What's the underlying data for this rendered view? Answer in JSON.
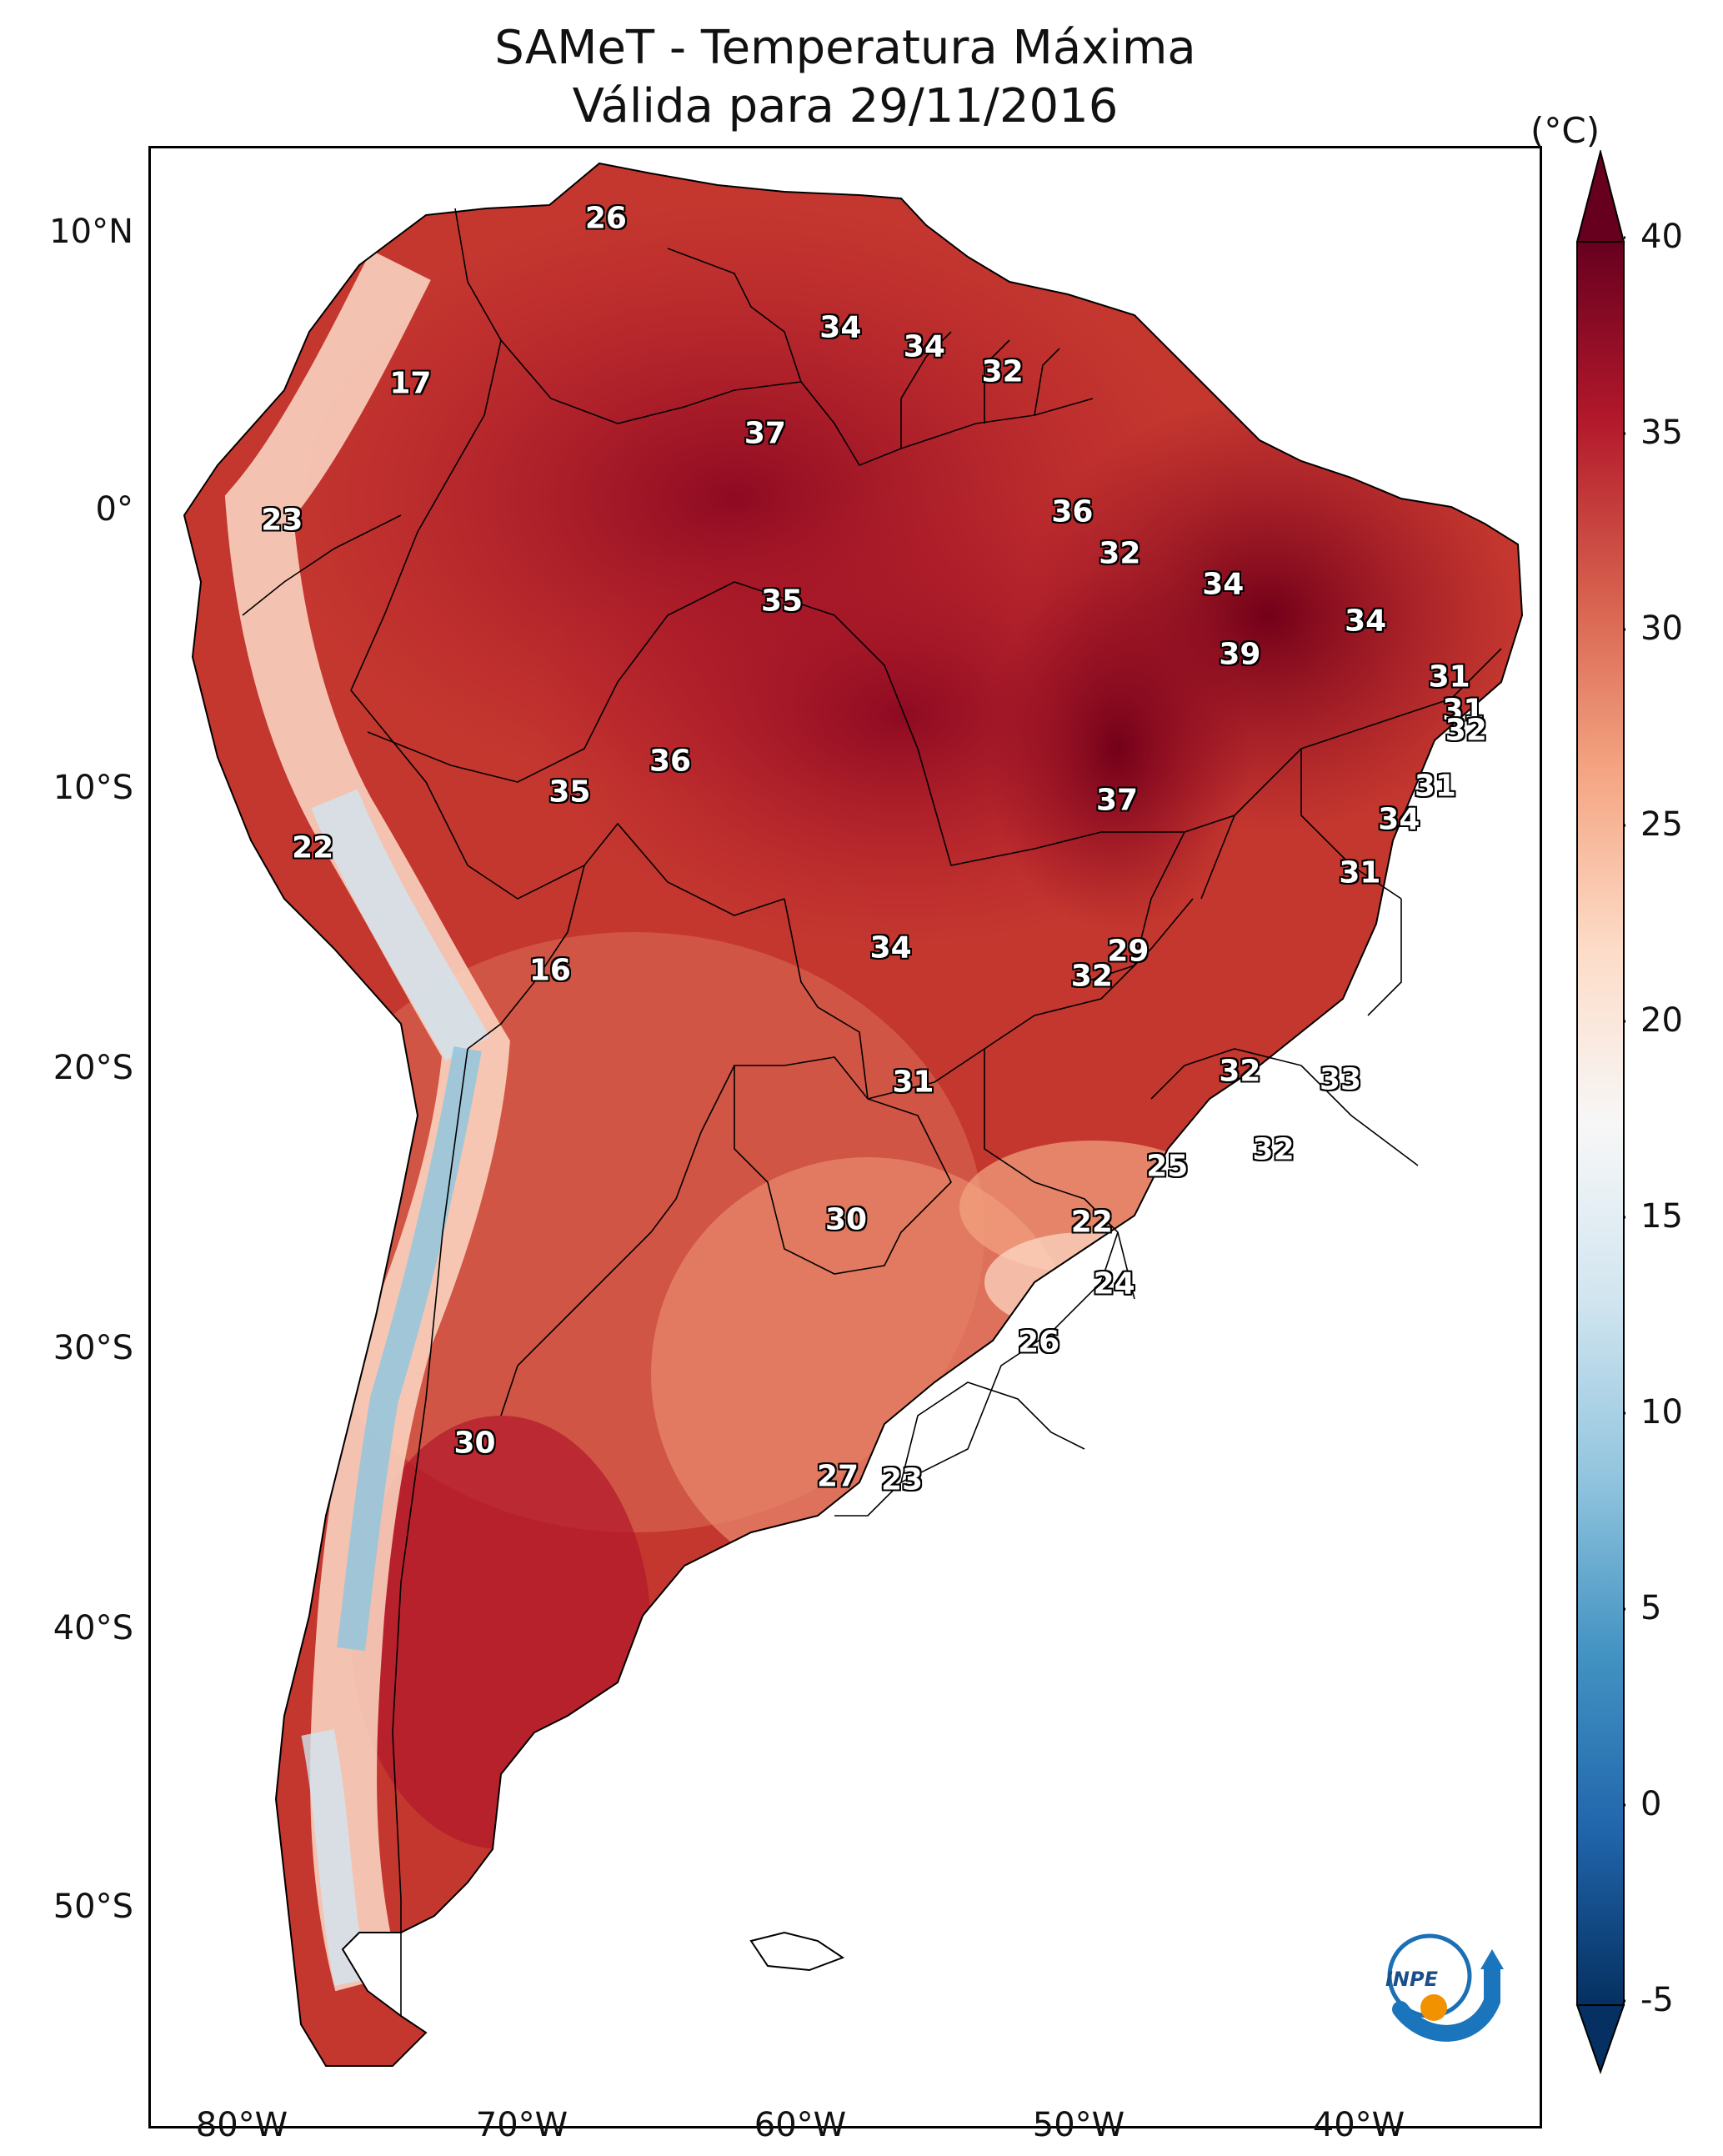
{
  "title": {
    "line1": "SAMeT - Temperatura Máxima",
    "line2": "Válida para 29/11/2016"
  },
  "colorbar": {
    "unit": "(°C)",
    "ticks": [
      "-5",
      "0",
      "5",
      "10",
      "15",
      "20",
      "25",
      "30",
      "35",
      "40"
    ],
    "min": -7,
    "max": 42,
    "colors": [
      "#053061",
      "#2166ac",
      "#4393c3",
      "#92c5de",
      "#d1e5f0",
      "#f7f7f7",
      "#fddbc7",
      "#f4a582",
      "#d6604d",
      "#b2182b",
      "#67001f"
    ]
  },
  "axes": {
    "lat_labels": [
      "10°N",
      "0°",
      "10°S",
      "20°S",
      "30°S",
      "40°S",
      "50°S"
    ],
    "lon_labels": [
      "80°W",
      "70°W",
      "60°W",
      "50°W",
      "40°W"
    ]
  },
  "logo": {
    "text": "INPE"
  },
  "map_labels": [
    {
      "value": "26",
      "lon": -66.3,
      "lat": 10.5
    },
    {
      "value": "17",
      "lon": -73.3,
      "lat": 4.6
    },
    {
      "value": "34",
      "lon": -57.9,
      "lat": 6.6
    },
    {
      "value": "34",
      "lon": -54.9,
      "lat": 5.9
    },
    {
      "value": "32",
      "lon": -52.1,
      "lat": 5.0
    },
    {
      "value": "37",
      "lon": -60.6,
      "lat": 2.8
    },
    {
      "value": "23",
      "lon": -77.9,
      "lat": -0.3
    },
    {
      "value": "36",
      "lon": -49.6,
      "lat": 0.0
    },
    {
      "value": "32",
      "lon": -47.9,
      "lat": -1.5
    },
    {
      "value": "34",
      "lon": -44.2,
      "lat": -2.6
    },
    {
      "value": "35",
      "lon": -60.0,
      "lat": -3.2
    },
    {
      "value": "34",
      "lon": -39.1,
      "lat": -3.9
    },
    {
      "value": "39",
      "lon": -43.6,
      "lat": -5.1
    },
    {
      "value": "31",
      "lon": -36.1,
      "lat": -5.9
    },
    {
      "value": "31",
      "lon": -35.6,
      "lat": -7.1
    },
    {
      "value": "32",
      "lon": -35.5,
      "lat": -7.8
    },
    {
      "value": "36",
      "lon": -64.0,
      "lat": -8.9
    },
    {
      "value": "35",
      "lon": -67.6,
      "lat": -10.0
    },
    {
      "value": "37",
      "lon": -48.0,
      "lat": -10.3
    },
    {
      "value": "31",
      "lon": -36.6,
      "lat": -9.8
    },
    {
      "value": "34",
      "lon": -37.9,
      "lat": -11.0
    },
    {
      "value": "22",
      "lon": -76.8,
      "lat": -12.0
    },
    {
      "value": "31",
      "lon": -39.3,
      "lat": -12.9
    },
    {
      "value": "34",
      "lon": -56.1,
      "lat": -15.6
    },
    {
      "value": "29",
      "lon": -47.6,
      "lat": -15.7
    },
    {
      "value": "32",
      "lon": -48.9,
      "lat": -16.6
    },
    {
      "value": "16",
      "lon": -68.3,
      "lat": -16.4
    },
    {
      "value": "32",
      "lon": -43.6,
      "lat": -20.0
    },
    {
      "value": "33",
      "lon": -40.0,
      "lat": -20.3
    },
    {
      "value": "31",
      "lon": -55.3,
      "lat": -20.4
    },
    {
      "value": "32",
      "lon": -42.4,
      "lat": -22.8
    },
    {
      "value": "25",
      "lon": -46.2,
      "lat": -23.4
    },
    {
      "value": "30",
      "lon": -57.7,
      "lat": -25.3
    },
    {
      "value": "22",
      "lon": -48.9,
      "lat": -25.4
    },
    {
      "value": "24",
      "lon": -48.1,
      "lat": -27.6
    },
    {
      "value": "26",
      "lon": -50.8,
      "lat": -29.7
    },
    {
      "value": "30",
      "lon": -71.0,
      "lat": -33.3
    },
    {
      "value": "27",
      "lon": -58.0,
      "lat": -34.5
    },
    {
      "value": "23",
      "lon": -55.7,
      "lat": -34.6
    }
  ]
}
